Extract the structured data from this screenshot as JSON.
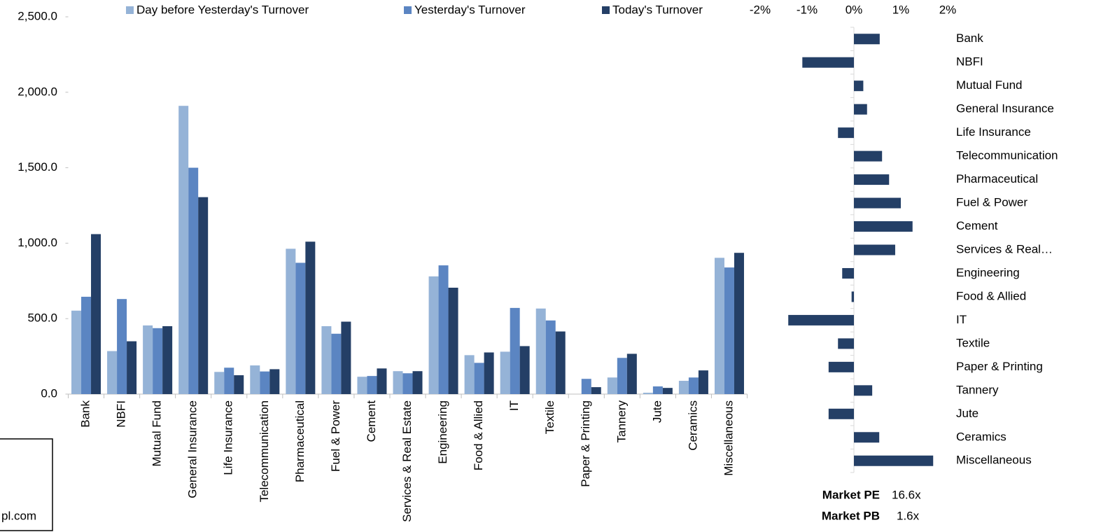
{
  "chart_data": [
    {
      "type": "bar",
      "categories": [
        "Bank",
        "NBFI",
        "Mutual Fund",
        "General Insurance",
        "Life Insurance",
        "Telecommunication",
        "Pharmaceutical",
        "Fuel & Power",
        "Cement",
        "Services & Real Estate",
        "Engineering",
        "Food & Allied",
        "IT",
        "Textile",
        "Paper & Printing",
        "Tannery",
        "Jute",
        "Ceramics",
        "Miscellaneous"
      ],
      "series": [
        {
          "name": "Day before Yesterday's Turnover",
          "color": "#95b3d7",
          "values": [
            553,
            285,
            455,
            1910,
            147,
            190,
            963,
            450,
            115,
            152,
            780,
            258,
            281,
            567,
            0,
            110,
            9,
            88,
            903
          ]
        },
        {
          "name": "Yesterday's Turnover",
          "color": "#5b85c2",
          "values": [
            645,
            630,
            437,
            1500,
            175,
            150,
            870,
            400,
            120,
            138,
            853,
            207,
            571,
            488,
            101,
            240,
            51,
            110,
            839
          ]
        },
        {
          "name": "Today's Turnover",
          "color": "#243f66",
          "values": [
            1060,
            350,
            450,
            1305,
            125,
            165,
            1010,
            480,
            170,
            152,
            705,
            276,
            318,
            415,
            46,
            267,
            41,
            157,
            936
          ]
        }
      ],
      "ylim": [
        0,
        2500
      ],
      "yticks": [
        {
          "value": 0,
          "label": "0.0"
        },
        {
          "value": 500,
          "label": "500.0"
        },
        {
          "value": 1000,
          "label": "1,000.0"
        },
        {
          "value": 1500,
          "label": "1,500.0"
        },
        {
          "value": 2000,
          "label": "2,000.0"
        },
        {
          "value": 2500,
          "label": "2,500.0"
        }
      ],
      "legend": "top"
    },
    {
      "type": "horizontal_bar",
      "categories": [
        "Bank",
        "NBFI",
        "Mutual Fund",
        "General Insurance",
        "Life Insurance",
        "Telecommunication",
        "Pharmaceutical",
        "Fuel & Power",
        "Cement",
        "Services & Real…",
        "Engineering",
        "Food & Allied",
        "IT",
        "Textile",
        "Paper & Printing",
        "Tannery",
        "Jute",
        "Ceramics",
        "Miscellaneous"
      ],
      "values": [
        0.55,
        -1.1,
        0.2,
        0.28,
        -0.34,
        0.6,
        0.75,
        1.0,
        1.25,
        0.88,
        -0.25,
        -0.05,
        -1.4,
        -0.34,
        -0.54,
        0.39,
        -0.54,
        0.54,
        1.69
      ],
      "color": "#243f66",
      "xlim": [
        -2,
        2
      ],
      "xticks": [
        {
          "value": -2,
          "label": "-2%"
        },
        {
          "value": -1,
          "label": "-1%"
        },
        {
          "value": 0,
          "label": "0%"
        },
        {
          "value": 1,
          "label": "1%"
        },
        {
          "value": 2,
          "label": "2%"
        }
      ]
    }
  ],
  "market_stats": [
    {
      "label": "Market PE",
      "value": "16.6x"
    },
    {
      "label": "Market PB",
      "value": "1.6x"
    }
  ],
  "footer_text": "pl.com"
}
